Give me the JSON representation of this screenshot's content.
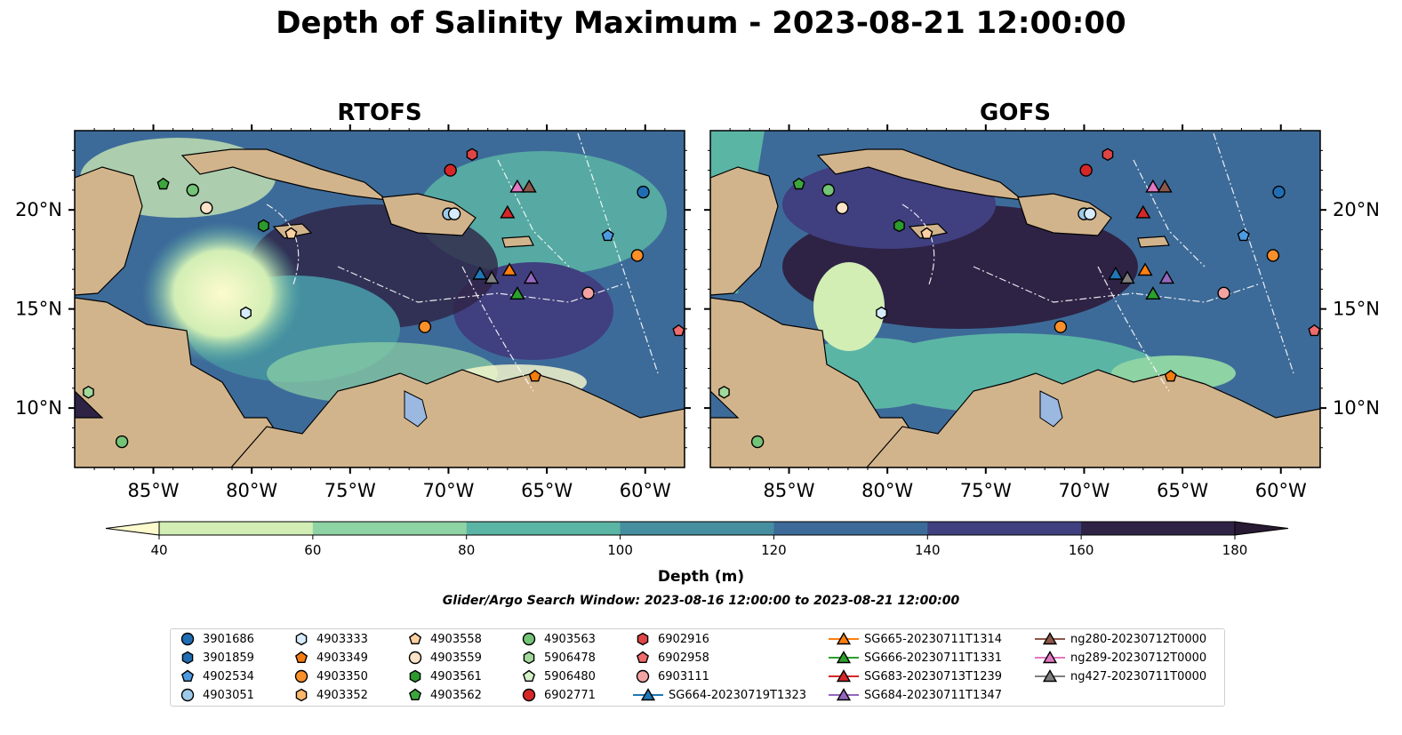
{
  "title": "Depth of Salinity Maximum - 2023-08-21 12:00:00",
  "panels": [
    {
      "title": "RTOFS"
    },
    {
      "title": "GOFS"
    }
  ],
  "map": {
    "lon_range": [
      -89,
      -58
    ],
    "lat_range": [
      7,
      24
    ],
    "lon_ticks": [
      {
        "value": -85,
        "label": "85°W"
      },
      {
        "value": -80,
        "label": "80°W"
      },
      {
        "value": -75,
        "label": "75°W"
      },
      {
        "value": -70,
        "label": "70°W"
      },
      {
        "value": -65,
        "label": "65°W"
      },
      {
        "value": -60,
        "label": "60°W"
      }
    ],
    "lat_ticks": [
      {
        "value": 10,
        "label": "10°N"
      },
      {
        "value": 15,
        "label": "15°N"
      },
      {
        "value": 20,
        "label": "20°N"
      }
    ],
    "land_color": "#d2b48c",
    "lake_color": "#9ab8e0"
  },
  "colorbar": {
    "label": "Depth (m)",
    "ticks": [
      "40",
      "60",
      "80",
      "100",
      "120",
      "140",
      "160",
      "180"
    ],
    "colors": [
      "#d2eeb5",
      "#8ed3a4",
      "#5bb5a5",
      "#458fa0",
      "#3d6b99",
      "#403f7f",
      "#2e2345"
    ],
    "under_color": "#fdfbcd",
    "over_color": "#291a33",
    "extend": "both"
  },
  "search_window": "Glider/Argo Search Window: 2023-08-16 12:00:00 to 2023-08-21 12:00:00",
  "legend": [
    {
      "label": "3901686",
      "marker": "circle",
      "color": "#1f6eb4"
    },
    {
      "label": "3901859",
      "marker": "hexagon",
      "color": "#1f6eb4"
    },
    {
      "label": "4902534",
      "marker": "pentagon",
      "color": "#4d9ae0"
    },
    {
      "label": "4903051",
      "marker": "circle",
      "color": "#9ecae9"
    },
    {
      "label": "4903333",
      "marker": "hexagon",
      "color": "#d6ebfb"
    },
    {
      "label": "4903349",
      "marker": "pentagon",
      "color": "#f57c0e"
    },
    {
      "label": "4903350",
      "marker": "circle",
      "color": "#fb8f2a"
    },
    {
      "label": "4903352",
      "marker": "hexagon",
      "color": "#fdb86b"
    },
    {
      "label": "4903558",
      "marker": "pentagon",
      "color": "#fdd0a2"
    },
    {
      "label": "4903559",
      "marker": "circle",
      "color": "#fde3c8"
    },
    {
      "label": "4903561",
      "marker": "hexagon",
      "color": "#2c9a2c"
    },
    {
      "label": "4903562",
      "marker": "pentagon",
      "color": "#3ca63c"
    },
    {
      "label": "4903563",
      "marker": "circle",
      "color": "#73c476"
    },
    {
      "label": "5906478",
      "marker": "hexagon",
      "color": "#a1d99b"
    },
    {
      "label": "5906480",
      "marker": "pentagon",
      "color": "#d4f0c8"
    },
    {
      "label": "6902771",
      "marker": "circle",
      "color": "#d62728"
    },
    {
      "label": "6902916",
      "marker": "hexagon",
      "color": "#e04545"
    },
    {
      "label": "6902958",
      "marker": "pentagon",
      "color": "#f06b6b"
    },
    {
      "label": "6903111",
      "marker": "circle",
      "color": "#f4a3a3"
    },
    {
      "label": "SG664-20230719T1323",
      "marker": "triangle",
      "color": "#1f77b4",
      "line": true
    },
    {
      "label": "SG665-20230711T1314",
      "marker": "triangle",
      "color": "#ff7f0e",
      "line": true
    },
    {
      "label": "SG666-20230711T1331",
      "marker": "triangle",
      "color": "#2ca02c",
      "line": true
    },
    {
      "label": "SG683-20230713T1239",
      "marker": "triangle",
      "color": "#d62728",
      "line": true
    },
    {
      "label": "SG684-20230711T1347",
      "marker": "triangle",
      "color": "#9467bd",
      "line": true
    },
    {
      "label": "ng280-20230712T0000",
      "marker": "triangle",
      "color": "#8c564b",
      "line": true
    },
    {
      "label": "ng289-20230712T0000",
      "marker": "triangle",
      "color": "#e377c2",
      "line": true
    },
    {
      "label": "ng427-20230711T0000",
      "marker": "triangle",
      "color": "#7f7f7f",
      "line": true
    }
  ],
  "markers": [
    {
      "lon": -84.5,
      "lat": 21.3,
      "marker": "pentagon",
      "color": "#3ca63c"
    },
    {
      "lon": -83.0,
      "lat": 21.0,
      "marker": "circle",
      "color": "#73c476"
    },
    {
      "lon": -82.3,
      "lat": 20.1,
      "marker": "circle",
      "color": "#fde3c8"
    },
    {
      "lon": -79.4,
      "lat": 19.2,
      "marker": "hexagon",
      "color": "#2c9a2c"
    },
    {
      "lon": -78.0,
      "lat": 18.8,
      "marker": "pentagon",
      "color": "#fdd0a2"
    },
    {
      "lon": -80.3,
      "lat": 14.8,
      "marker": "hexagon",
      "color": "#d6ebfb"
    },
    {
      "lon": -88.3,
      "lat": 10.8,
      "marker": "hexagon",
      "color": "#a1d99b"
    },
    {
      "lon": -86.6,
      "lat": 8.3,
      "marker": "circle",
      "color": "#73c476"
    },
    {
      "lon": -71.2,
      "lat": 14.1,
      "marker": "circle",
      "color": "#fb8f2a"
    },
    {
      "lon": -69.9,
      "lat": 22.0,
      "marker": "circle",
      "color": "#d62728"
    },
    {
      "lon": -68.8,
      "lat": 22.8,
      "marker": "hexagon",
      "color": "#e04545"
    },
    {
      "lon": -70.0,
      "lat": 19.8,
      "marker": "circle",
      "color": "#9ecae9"
    },
    {
      "lon": -69.7,
      "lat": 19.8,
      "marker": "circle",
      "color": "#d6ebfb"
    },
    {
      "lon": -62.9,
      "lat": 15.8,
      "marker": "circle",
      "color": "#f4a3a3"
    },
    {
      "lon": -61.9,
      "lat": 18.7,
      "marker": "pentagon",
      "color": "#4d9ae0"
    },
    {
      "lon": -60.4,
      "lat": 17.7,
      "marker": "circle",
      "color": "#fb8f2a"
    },
    {
      "lon": -60.1,
      "lat": 20.9,
      "marker": "circle",
      "color": "#1f6eb4"
    },
    {
      "lon": -58.3,
      "lat": 13.9,
      "marker": "pentagon",
      "color": "#f06b6b"
    },
    {
      "lon": -65.6,
      "lat": 11.6,
      "marker": "pentagon",
      "color": "#f57c0e"
    },
    {
      "lon": -66.5,
      "lat": 21.1,
      "marker": "triangle",
      "color": "#e377c2"
    },
    {
      "lon": -65.9,
      "lat": 21.1,
      "marker": "triangle",
      "color": "#8c564b"
    },
    {
      "lon": -67.0,
      "lat": 19.8,
      "marker": "triangle",
      "color": "#d62728"
    },
    {
      "lon": -68.4,
      "lat": 16.7,
      "marker": "triangle",
      "color": "#1f77b4"
    },
    {
      "lon": -67.8,
      "lat": 16.5,
      "marker": "triangle",
      "color": "#7f7f7f"
    },
    {
      "lon": -66.9,
      "lat": 16.9,
      "marker": "triangle",
      "color": "#ff7f0e"
    },
    {
      "lon": -66.5,
      "lat": 15.7,
      "marker": "triangle",
      "color": "#2ca02c"
    },
    {
      "lon": -65.8,
      "lat": 16.5,
      "marker": "triangle",
      "color": "#9467bd"
    }
  ]
}
